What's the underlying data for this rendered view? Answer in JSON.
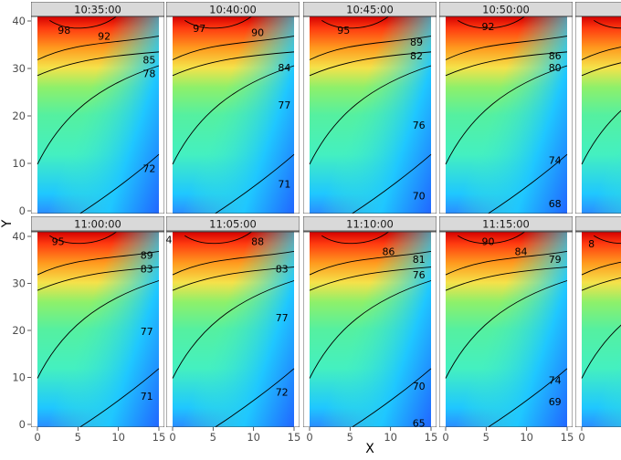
{
  "chart_data": {
    "type": "heatmap",
    "description": "Faceted contour heatmaps of a field over X-Y space at successive times; filled color from blue (low) to red (high) with labeled black contour lines.",
    "xlabel": "X",
    "ylabel": "Y",
    "xlim": [
      0,
      15
    ],
    "ylim": [
      0,
      40
    ],
    "x_ticks": [
      0,
      5,
      10,
      15
    ],
    "y_ticks": [
      0,
      10,
      20,
      30,
      40
    ],
    "color_scale": [
      "#2166ff",
      "#1fc7ff",
      "#44f0c0",
      "#8ef06a",
      "#f5e24a",
      "#ff9a1e",
      "#ff3a10",
      "#d40000"
    ],
    "panels": [
      {
        "time": "10:35:00",
        "contour_labels": [
          "98",
          "92",
          "85",
          "78",
          "72"
        ]
      },
      {
        "time": "10:40:00",
        "contour_labels": [
          "97",
          "90",
          "84",
          "77",
          "71"
        ]
      },
      {
        "time": "10:45:00",
        "contour_labels": [
          "95",
          "89",
          "82",
          "76",
          "70"
        ]
      },
      {
        "time": "10:50:00",
        "contour_labels": [
          "92",
          "86",
          "80",
          "74",
          "68"
        ]
      },
      {
        "time": "",
        "contour_labels": []
      },
      {
        "time": "11:00:00",
        "contour_labels": [
          "95",
          "89",
          "83",
          "77",
          "71"
        ]
      },
      {
        "time": "11:05:00",
        "contour_labels": [
          "4",
          "88",
          "83",
          "77",
          "72"
        ]
      },
      {
        "time": "11:10:00",
        "contour_labels": [
          "86",
          "81",
          "76",
          "70",
          "65"
        ]
      },
      {
        "time": "11:15:00",
        "contour_labels": [
          "90",
          "84",
          "79",
          "74",
          "69"
        ]
      },
      {
        "time": "",
        "contour_labels": [
          "8"
        ]
      }
    ]
  }
}
